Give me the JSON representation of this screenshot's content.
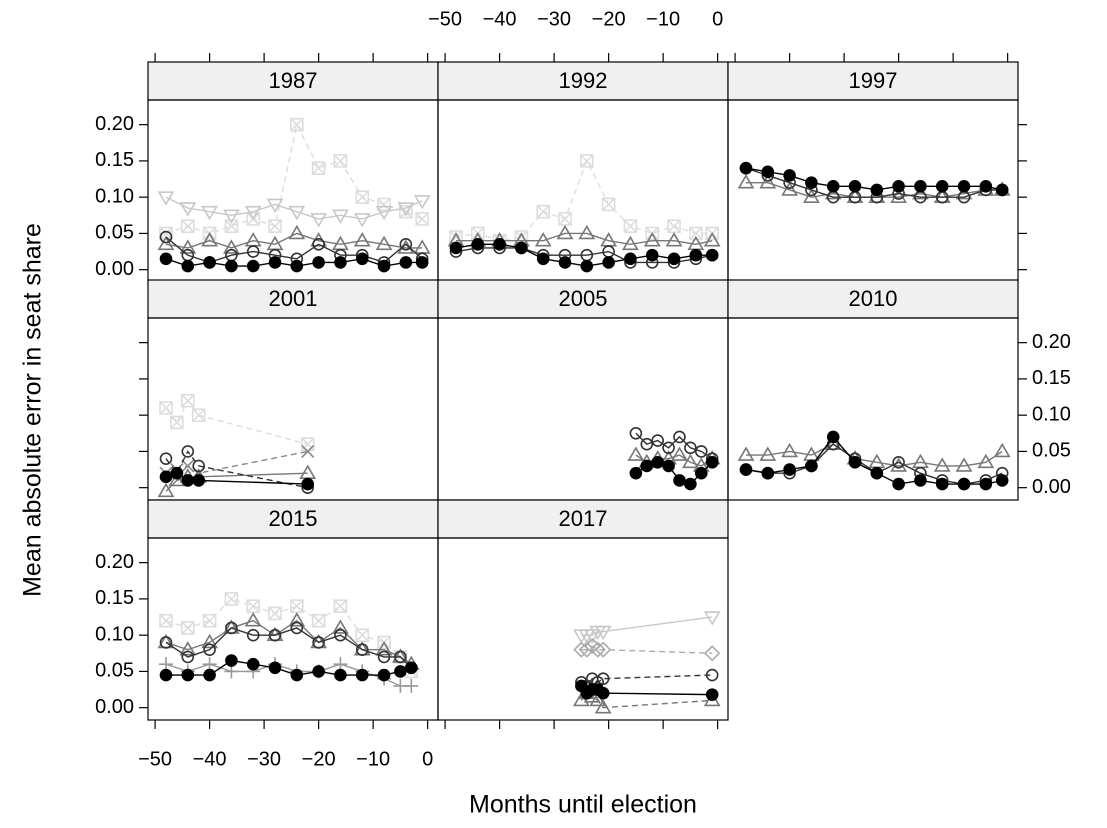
{
  "chart_data": {
    "type": "scatter",
    "xlabel": "Months until election",
    "ylabel": "Mean absolute error in seat share",
    "xlim": [
      -51.3,
      1.9
    ],
    "xticks": [
      {
        "value": -50,
        "label": "−50"
      },
      {
        "value": -40,
        "label": "−40"
      },
      {
        "value": -30,
        "label": "−30"
      },
      {
        "value": -20,
        "label": "−20"
      },
      {
        "value": -10,
        "label": "−10"
      },
      0
    ],
    "ylim": [
      -0.017,
      0.234
    ],
    "yticks": [
      {
        "value": 0,
        "label": "0.00"
      },
      {
        "value": 0.05,
        "label": "0.05"
      },
      {
        "value": 0.1,
        "label": "0.10"
      },
      {
        "value": 0.15,
        "label": "0.15"
      },
      {
        "value": 0.2,
        "label": "0.20"
      }
    ],
    "panels": [
      {
        "title": "1987",
        "x": [
          -48,
          -44,
          -40,
          -36,
          -32,
          -28,
          -24,
          -20,
          -16,
          -12,
          -8,
          -4,
          -1
        ],
        "series": [
          {
            "marker": "boxed-x",
            "color": "#dddddd",
            "dashed": true,
            "values": [
              0.05,
              0.06,
              0.05,
              0.06,
              0.07,
              0.06,
              0.2,
              0.14,
              0.15,
              0.1,
              0.09,
              0.08,
              0.07
            ]
          },
          {
            "marker": "triangle-down",
            "color": "#c8c8c8",
            "dashed": false,
            "values": [
              0.1,
              0.085,
              0.08,
              0.075,
              0.08,
              0.09,
              0.08,
              0.07,
              0.075,
              0.07,
              0.08,
              0.085,
              0.095
            ]
          },
          {
            "marker": "triangle",
            "color": "#777777",
            "dashed": false,
            "values": [
              0.035,
              0.03,
              0.04,
              0.03,
              0.04,
              0.035,
              0.05,
              0.04,
              0.035,
              0.04,
              0.035,
              0.03,
              0.03
            ]
          },
          {
            "marker": "circle",
            "color": "#333333",
            "dashed": false,
            "values": [
              0.045,
              0.02,
              0.01,
              0.02,
              0.025,
              0.02,
              0.015,
              0.035,
              0.02,
              0.02,
              0.01,
              0.035,
              0.015
            ]
          },
          {
            "marker": "filled-circle",
            "color": "#000000",
            "dashed": false,
            "values": [
              0.015,
              0.005,
              0.01,
              0.005,
              0.005,
              0.01,
              0.005,
              0.01,
              0.01,
              0.015,
              0.005,
              0.01,
              0.01
            ]
          }
        ]
      },
      {
        "title": "1992",
        "x": [
          -48,
          -44,
          -40,
          -36,
          -32,
          -28,
          -24,
          -20,
          -16,
          -12,
          -8,
          -4,
          -1
        ],
        "series": [
          {
            "marker": "boxed-x",
            "color": "#dddddd",
            "dashed": true,
            "values": [
              0.045,
              0.05,
              0.04,
              0.045,
              0.08,
              0.07,
              0.15,
              0.09,
              0.06,
              0.05,
              0.06,
              0.05,
              0.05
            ]
          },
          {
            "marker": "triangle",
            "color": "#777777",
            "dashed": false,
            "values": [
              0.04,
              0.04,
              0.04,
              0.04,
              0.04,
              0.05,
              0.05,
              0.04,
              0.035,
              0.04,
              0.04,
              0.035,
              0.04
            ]
          },
          {
            "marker": "circle",
            "color": "#333333",
            "dashed": false,
            "values": [
              0.025,
              0.03,
              0.03,
              0.03,
              0.02,
              0.02,
              0.02,
              0.025,
              0.01,
              0.01,
              0.01,
              0.015,
              0.02
            ]
          },
          {
            "marker": "filled-circle",
            "color": "#000000",
            "dashed": false,
            "values": [
              0.03,
              0.035,
              0.035,
              0.03,
              0.015,
              0.01,
              0.005,
              0.01,
              0.015,
              0.02,
              0.015,
              0.02,
              0.02
            ]
          }
        ]
      },
      {
        "title": "1997",
        "x": [
          -48,
          -44,
          -40,
          -36,
          -32,
          -28,
          -24,
          -20,
          -16,
          -12,
          -8,
          -4,
          -1
        ],
        "series": [
          {
            "marker": "triangle",
            "color": "#777777",
            "dashed": false,
            "values": [
              0.12,
              0.12,
              0.11,
              0.1,
              0.105,
              0.1,
              0.1,
              0.1,
              0.105,
              0.1,
              0.105,
              0.11,
              0.11
            ]
          },
          {
            "marker": "circle",
            "color": "#333333",
            "dashed": false,
            "values": [
              0.14,
              0.13,
              0.12,
              0.11,
              0.1,
              0.1,
              0.1,
              0.105,
              0.1,
              0.1,
              0.1,
              0.11,
              0.11
            ]
          },
          {
            "marker": "filled-circle",
            "color": "#000000",
            "dashed": false,
            "values": [
              0.14,
              0.135,
              0.13,
              0.12,
              0.115,
              0.115,
              0.11,
              0.115,
              0.115,
              0.115,
              0.115,
              0.115,
              0.11
            ]
          }
        ]
      },
      {
        "title": "2001",
        "x": [
          -48,
          -46,
          -44,
          -42,
          -22
        ],
        "series": [
          {
            "marker": "boxed-x",
            "color": "#dddddd",
            "dashed": true,
            "values": [
              0.11,
              0.09,
              0.12,
              0.1,
              0.06
            ]
          },
          {
            "marker": "x",
            "color": "#888888",
            "dashed": true,
            "values": [
              0.02,
              0.025,
              0.03,
              0.02,
              0.05
            ]
          },
          {
            "marker": "triangle",
            "color": "#777777",
            "dashed": false,
            "values": [
              -0.005,
              0.01,
              0.015,
              0.015,
              0.02
            ]
          },
          {
            "marker": "circle",
            "color": "#333333",
            "dashed": true,
            "values": [
              0.04,
              0.02,
              0.05,
              0.03,
              0.0
            ]
          },
          {
            "marker": "filled-circle",
            "color": "#000000",
            "dashed": false,
            "values": [
              0.015,
              0.02,
              0.01,
              0.01,
              0.005
            ]
          }
        ]
      },
      {
        "title": "2005",
        "x": [
          -15,
          -13,
          -11,
          -9,
          -7,
          -5,
          -3,
          -1
        ],
        "series": [
          {
            "marker": "triangle",
            "color": "#777777",
            "dashed": false,
            "values": [
              0.045,
              0.035,
              0.04,
              0.04,
              0.045,
              0.035,
              0.03,
              0.04
            ]
          },
          {
            "marker": "circle",
            "color": "#333333",
            "dashed": false,
            "values": [
              0.075,
              0.06,
              0.065,
              0.055,
              0.07,
              0.055,
              0.05,
              0.04
            ]
          },
          {
            "marker": "filled-circle",
            "color": "#000000",
            "dashed": false,
            "values": [
              0.02,
              0.03,
              0.035,
              0.03,
              0.01,
              0.005,
              0.02,
              0.035
            ]
          }
        ]
      },
      {
        "title": "2010",
        "x": [
          -48,
          -44,
          -40,
          -36,
          -32,
          -28,
          -24,
          -20,
          -16,
          -12,
          -8,
          -4,
          -1
        ],
        "series": [
          {
            "marker": "triangle",
            "color": "#777777",
            "dashed": false,
            "values": [
              0.045,
              0.045,
              0.05,
              0.045,
              0.06,
              0.04,
              0.035,
              0.03,
              0.035,
              0.03,
              0.03,
              0.035,
              0.05
            ]
          },
          {
            "marker": "circle",
            "color": "#333333",
            "dashed": false,
            "values": [
              0.025,
              0.02,
              0.02,
              0.03,
              0.06,
              0.04,
              0.02,
              0.035,
              0.02,
              0.01,
              0.005,
              0.01,
              0.02
            ]
          },
          {
            "marker": "filled-circle",
            "color": "#000000",
            "dashed": false,
            "values": [
              0.025,
              0.02,
              0.025,
              0.03,
              0.07,
              0.035,
              0.02,
              0.005,
              0.01,
              0.005,
              0.005,
              0.005,
              0.01
            ]
          }
        ]
      },
      {
        "title": "2015",
        "x": [
          -48,
          -44,
          -40,
          -36,
          -32,
          -28,
          -24,
          -20,
          -16,
          -12,
          -8,
          -5,
          -3
        ],
        "series": [
          {
            "marker": "boxed-x",
            "color": "#dddddd",
            "dashed": true,
            "values": [
              0.12,
              0.11,
              0.12,
              0.15,
              0.14,
              0.13,
              0.14,
              0.12,
              0.14,
              0.1,
              0.09,
              0.07,
              0.05
            ]
          },
          {
            "marker": "plus",
            "color": "#999999",
            "dashed": false,
            "values": [
              0.06,
              0.05,
              0.06,
              0.05,
              0.05,
              0.06,
              0.05,
              0.05,
              0.06,
              0.05,
              0.04,
              0.03,
              0.03
            ]
          },
          {
            "marker": "triangle",
            "color": "#777777",
            "dashed": false,
            "values": [
              0.09,
              0.08,
              0.09,
              0.11,
              0.12,
              0.1,
              0.12,
              0.09,
              0.11,
              0.08,
              0.08,
              0.07,
              0.06
            ]
          },
          {
            "marker": "circle",
            "color": "#333333",
            "dashed": false,
            "values": [
              0.09,
              0.07,
              0.08,
              0.11,
              0.1,
              0.1,
              0.11,
              0.09,
              0.1,
              0.08,
              0.07,
              0.07,
              0.055
            ]
          },
          {
            "marker": "filled-circle",
            "color": "#000000",
            "dashed": false,
            "values": [
              0.045,
              0.045,
              0.045,
              0.065,
              0.06,
              0.055,
              0.045,
              0.05,
              0.045,
              0.045,
              0.045,
              0.05,
              0.055
            ]
          }
        ]
      },
      {
        "title": "2017",
        "x": [
          -25,
          -24,
          -23,
          -22,
          -21,
          -1
        ],
        "series": [
          {
            "marker": "triangle-down",
            "color": "#c8c8c8",
            "dashed": false,
            "values": [
              0.1,
              0.1,
              0.1,
              0.105,
              0.105,
              0.125
            ]
          },
          {
            "marker": "diamond",
            "color": "#aaaaaa",
            "dashed": true,
            "values": [
              0.08,
              0.08,
              0.085,
              0.08,
              0.08,
              0.075
            ]
          },
          {
            "marker": "circle",
            "color": "#333333",
            "dashed": true,
            "values": [
              0.035,
              0.03,
              0.04,
              0.035,
              0.04,
              0.045
            ]
          },
          {
            "marker": "triangle",
            "color": "#777777",
            "dashed": true,
            "values": [
              0.01,
              0.02,
              0.015,
              0.01,
              0.0,
              0.01
            ]
          },
          {
            "marker": "filled-circle",
            "color": "#000000",
            "dashed": false,
            "values": [
              0.03,
              0.02,
              0.025,
              0.025,
              0.02,
              0.018
            ]
          }
        ]
      }
    ]
  }
}
